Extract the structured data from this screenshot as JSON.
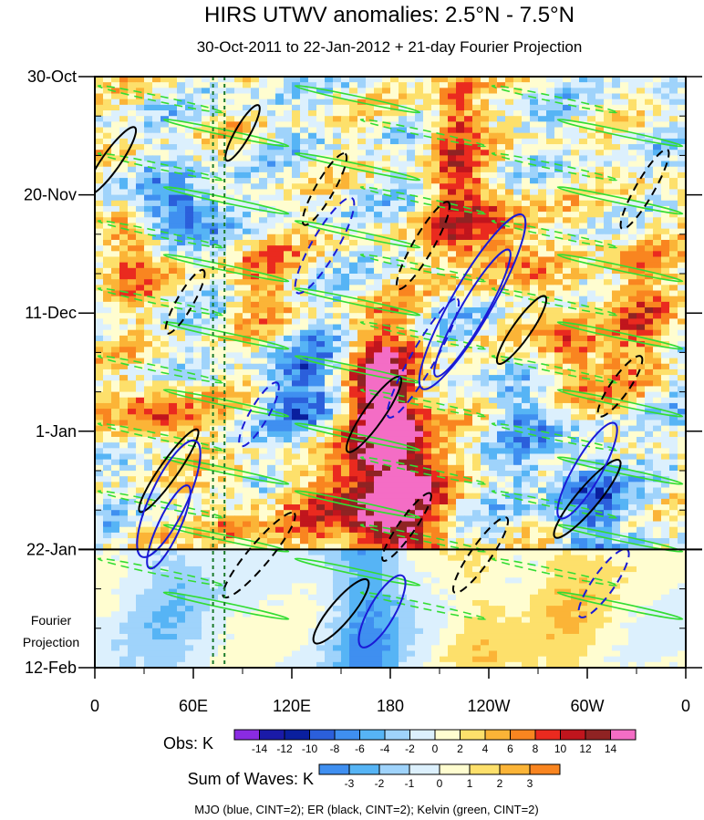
{
  "chart_data": {
    "type": "heatmap",
    "title": "HIRS UTWV anomalies: 2.5°N - 7.5°N",
    "subtitle": "30-Oct-2011 to 22-Jan-2012 + 21-day Fourier Projection",
    "x_ticks": [
      "0",
      "60E",
      "120E",
      "180",
      "120W",
      "60W",
      "0"
    ],
    "x_values_deg_east": [
      0,
      60,
      120,
      180,
      240,
      300,
      360
    ],
    "y_ticks": [
      "30-Oct",
      "20-Nov",
      "11-Dec",
      "1-Jan",
      "22-Jan",
      "12-Feb"
    ],
    "y_day_offsets": [
      0,
      21,
      42,
      63,
      84,
      105
    ],
    "projection_start_label": "22-Jan",
    "projection_label_line1": "Fourier",
    "projection_label_line2": "Projection",
    "obs_colorbar": {
      "label": "Obs: K",
      "levels": [
        "-14",
        "-12",
        "-10",
        "-8",
        "-6",
        "-4",
        "-2",
        "0",
        "2",
        "4",
        "6",
        "8",
        "10",
        "12",
        "14"
      ],
      "colors": [
        "#8a2be2",
        "#1a1aa8",
        "#0a1f9e",
        "#2b5fdb",
        "#3f8ff0",
        "#56b4f5",
        "#9fd3fb",
        "#dcf0fd",
        "#fffdd0",
        "#fde06b",
        "#fbb437",
        "#f98520",
        "#ea2a1f",
        "#c0151d",
        "#8f2323",
        "#f46dc5"
      ]
    },
    "waves_colorbar": {
      "label": "Sum of Waves: K",
      "levels": [
        "-3",
        "-2",
        "-1",
        "0",
        "1",
        "2",
        "3"
      ],
      "colors": [
        "#3f8ff0",
        "#56b4f5",
        "#9fd3fb",
        "#dcf0fd",
        "#fffdd0",
        "#fde06b",
        "#fbb437",
        "#f98520"
      ]
    },
    "contours": [
      {
        "name": "MJO",
        "color": "#1a1ad6",
        "cint": 2
      },
      {
        "name": "ER",
        "color": "#000000",
        "cint": 2
      },
      {
        "name": "Kelvin",
        "color": "#33dd33",
        "cint": 2
      }
    ],
    "dotted_reference_lon_deg_east": [
      72,
      79
    ],
    "footnote": "MJO (blue, CINT=2); ER (black, CINT=2); Kelvin (green, CINT=2)"
  }
}
